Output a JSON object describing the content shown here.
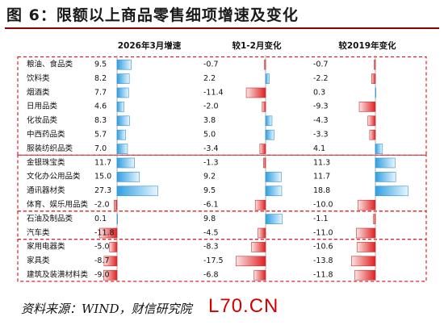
{
  "title": "图 6：限额以上商品零售细项增速及变化",
  "source": "资料来源：WIND，财信研究院",
  "watermark": "L70.CN",
  "colors": {
    "positive_gradient_start": "#2e9fe0",
    "positive_gradient_end": "#e8f6ff",
    "negative_gradient_start": "#f4d0d0",
    "negative_gradient_end": "#e02020",
    "dashed_box": "#d8202a",
    "title_rule": "#8B0000"
  },
  "chart_data": {
    "type": "bar",
    "orientation": "horizontal",
    "panel_titles": [
      "2026年3月增速",
      "较1-2月变化",
      "较2019年变化"
    ],
    "categories": [
      "粮油、食品类",
      "饮料类",
      "烟酒类",
      "日用品类",
      "化妆品类",
      "中西药品类",
      "服装纺织品类",
      "金银珠宝类",
      "文化办公用品类",
      "通讯器材类",
      "体育、娱乐用品类",
      "石油及制品类",
      "汽车类",
      "家用电器类",
      "家具类",
      "建筑及装潢材料类"
    ],
    "groups": [
      [
        0,
        6
      ],
      [
        7,
        10
      ],
      [
        11,
        12
      ],
      [
        13,
        15
      ]
    ],
    "series": [
      {
        "values": [
          9.5,
          8.2,
          7.7,
          4.6,
          8.3,
          5.7,
          7.0,
          11.7,
          15.0,
          27.3,
          -2.0,
          0.1,
          -11.8,
          -5.0,
          -8.7,
          -9.0
        ],
        "labels": [
          "9.5",
          "8.2",
          "7.7",
          "4.6",
          "8.3",
          "5.7",
          "7.0",
          "11.7",
          "15.0",
          "27.3",
          "-2.0",
          "0.1",
          "-11.8",
          "-5.0",
          "-8.7",
          "-9.0"
        ]
      },
      {
        "values": [
          -0.7,
          2.2,
          -11.4,
          -2.0,
          3.8,
          5.0,
          -3.4,
          -1.3,
          9.2,
          9.5,
          -6.1,
          9.8,
          -4.5,
          -8.3,
          -17.5,
          -6.8
        ],
        "labels": [
          "-0.7",
          "2.2",
          "-11.4",
          "-2.0",
          "3.8",
          "5.0",
          "-3.4",
          "-1.3",
          "9.2",
          "9.5",
          "-6.1",
          "9.8",
          "-4.5",
          "-8.3",
          "-17.5",
          "-6.8"
        ]
      },
      {
        "values": [
          -0.7,
          -2.2,
          0.3,
          -9.3,
          -4.3,
          -3.3,
          4.1,
          11.3,
          11.7,
          18.8,
          -10.0,
          -1.1,
          -11.0,
          -10.6,
          -13.8,
          -11.8
        ],
        "labels": [
          "-0.7",
          "-2.2",
          "0.3",
          "-9.3",
          "-4.3",
          "-3.3",
          "4.1",
          "11.3",
          "11.7",
          "18.8",
          "-10.0",
          "-1.1",
          "-11.0",
          "-10.6",
          "-13.8",
          "-11.8"
        ]
      }
    ]
  }
}
